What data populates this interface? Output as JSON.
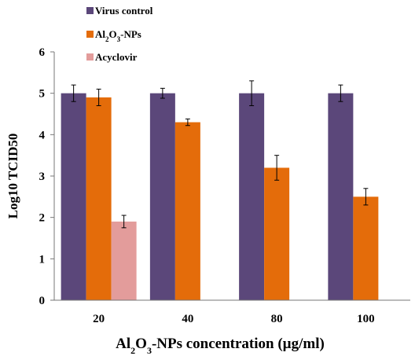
{
  "chart_data": {
    "type": "bar",
    "categories": [
      "20",
      "40",
      "80",
      "100"
    ],
    "series": [
      {
        "name": "Virus control",
        "color": "#5B477A",
        "values": [
          5.0,
          5.0,
          5.0,
          5.0
        ],
        "errors": [
          0.2,
          0.12,
          0.3,
          0.2
        ]
      },
      {
        "name_parts": [
          "Al",
          "2",
          "O",
          "3",
          "-NPs"
        ],
        "color": "#E46C0A",
        "values": [
          4.9,
          4.3,
          3.2,
          2.5
        ],
        "errors": [
          0.2,
          0.08,
          0.3,
          0.2
        ]
      },
      {
        "name": "Acyclovir",
        "color": "#E39C9B",
        "values": [
          1.9,
          null,
          null,
          null
        ],
        "errors": [
          0.15,
          null,
          null,
          null
        ]
      }
    ],
    "xlabel_parts": [
      "Al",
      "2",
      "O",
      "3",
      "-NPs concentration (µg/ml)"
    ],
    "ylabel": "Log10 TCID50",
    "yticks": [
      "0",
      "1",
      "2",
      "3",
      "4",
      "5",
      "6"
    ],
    "ylim": [
      0,
      6
    ],
    "legend_position": "top-left",
    "grid": false
  }
}
